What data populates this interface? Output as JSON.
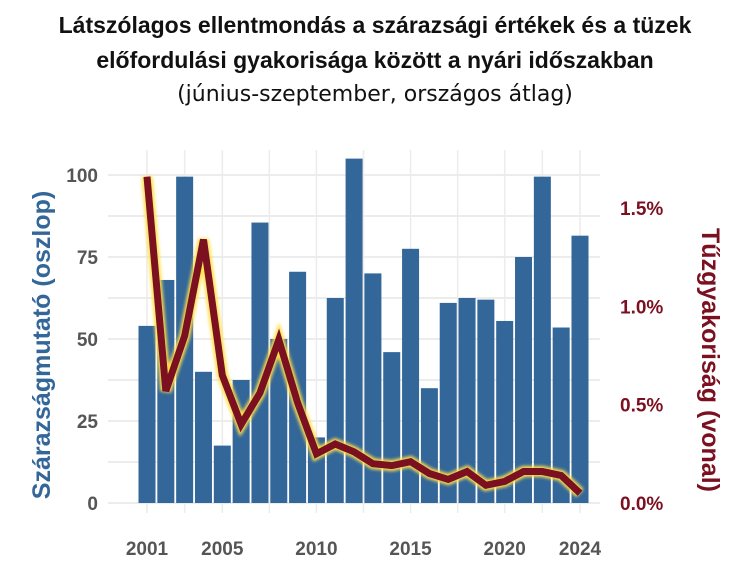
{
  "chart_data": {
    "type": "bar+line",
    "title": "Látszólagos ellentmondás a szárazsági értékek és a tüzek",
    "title_line2": "előfordulási gyakorisága között a nyári időszakban",
    "subtitle": "(június-szeptember, országos átlag)",
    "ylabel_left": "Szárazságmutató  (oszlop)",
    "ylabel_right": "Tűzgyakoriság (vonal)",
    "x": [
      2001,
      2002,
      2003,
      2004,
      2005,
      2006,
      2007,
      2008,
      2009,
      2010,
      2011,
      2012,
      2013,
      2014,
      2015,
      2016,
      2017,
      2018,
      2019,
      2020,
      2021,
      2022,
      2023,
      2024
    ],
    "xticks": [
      "2001",
      "2005",
      "2010",
      "2015",
      "2020",
      "2024"
    ],
    "yticks_left": [
      "0",
      "25",
      "50",
      "75",
      "100"
    ],
    "yticks_right": [
      "0.0%",
      "0.5%",
      "1.0%",
      "1.5%"
    ],
    "ylim_left": [
      0,
      108
    ],
    "ylim_right": [
      0,
      1.75
    ],
    "series": [
      {
        "name": "Szárazságmutató",
        "type": "bar",
        "color": "#336699",
        "values": [
          54,
          68,
          99.5,
          40,
          17.5,
          37.5,
          85.5,
          50,
          70.5,
          20,
          62.5,
          105,
          70,
          46,
          77.5,
          35,
          61,
          62.5,
          62,
          55.5,
          75,
          99.5,
          53.5,
          81.5
        ]
      },
      {
        "name": "Tűzgyakoriság (%)",
        "type": "line",
        "color": "#7a1020",
        "values": [
          1.66,
          0.57,
          0.85,
          1.34,
          0.65,
          0.4,
          0.56,
          0.83,
          0.51,
          0.25,
          0.3,
          0.26,
          0.2,
          0.19,
          0.21,
          0.15,
          0.12,
          0.16,
          0.09,
          0.11,
          0.16,
          0.16,
          0.14,
          0.05
        ]
      }
    ],
    "grid": true
  }
}
